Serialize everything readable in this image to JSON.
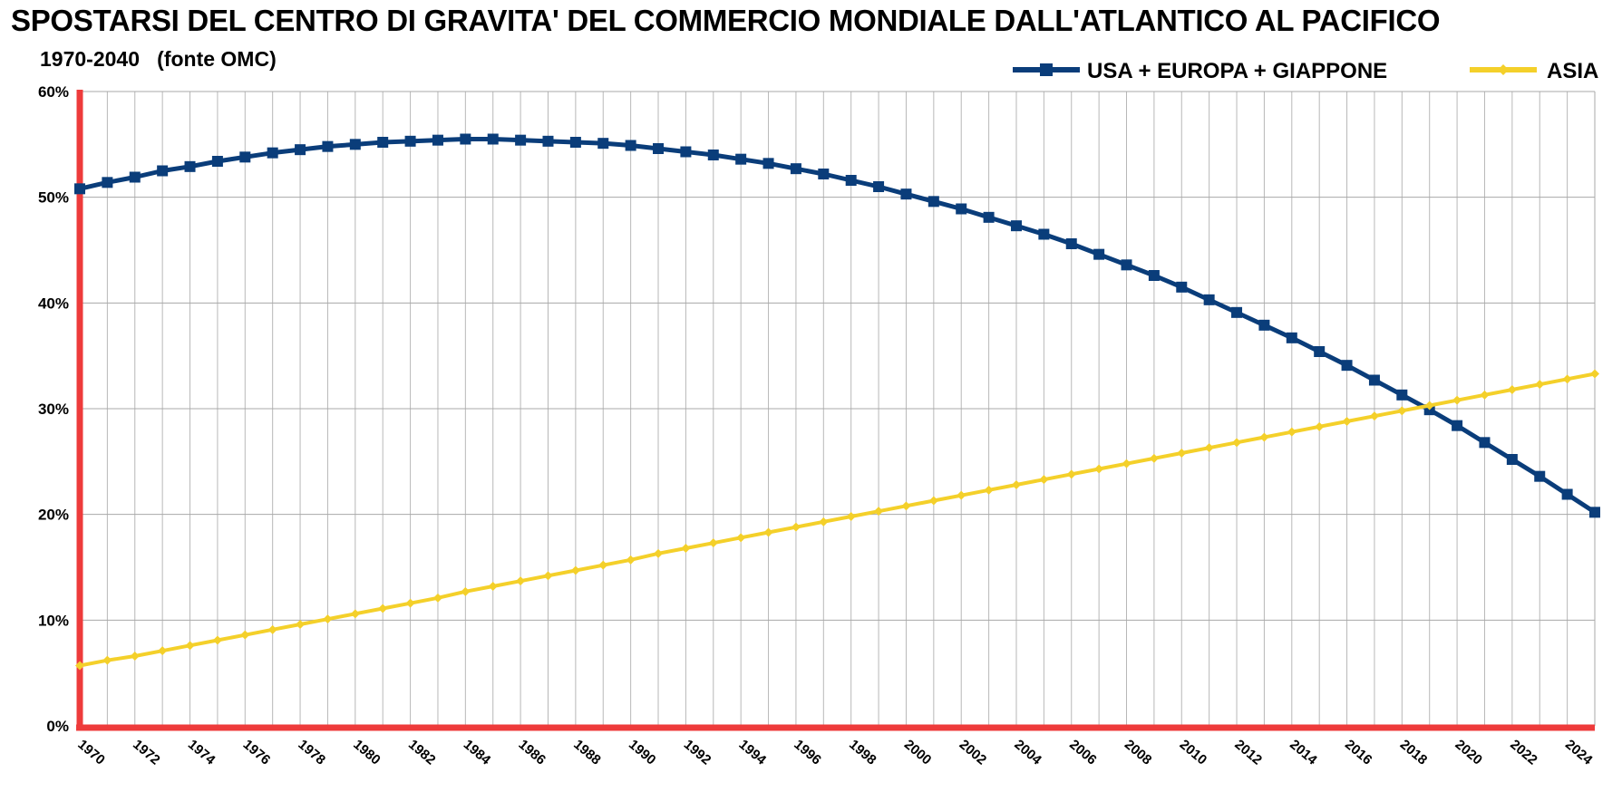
{
  "chart_data": {
    "type": "line",
    "title": "SPOSTARSI DEL CENTRO DI GRAVITA' DEL COMMERCIO MONDIALE DALL'ATLANTICO AL PACIFICO",
    "subtitle": "1970-2040   (fonte OMC)",
    "xlabel": "",
    "ylabel": "",
    "ylim": [
      0,
      60
    ],
    "y_ticks": [
      "0%",
      "10%",
      "20%",
      "30%",
      "40%",
      "50%",
      "60%"
    ],
    "x_tick_labels": [
      "1970",
      "1972",
      "1974",
      "1976",
      "1978",
      "1980",
      "1982",
      "1984",
      "1986",
      "1988",
      "1990",
      "1992",
      "1994",
      "1996",
      "1998",
      "2000",
      "2002",
      "2004",
      "2006",
      "2008",
      "2010",
      "2012",
      "2014",
      "2016",
      "2018",
      "2020",
      "2022",
      "2024"
    ],
    "grid": true,
    "legend_position": "top-right",
    "x": [
      1970,
      1971,
      1972,
      1973,
      1974,
      1975,
      1976,
      1977,
      1978,
      1979,
      1980,
      1981,
      1982,
      1983,
      1984,
      1985,
      1986,
      1987,
      1988,
      1989,
      1990,
      1991,
      1992,
      1993,
      1994,
      1995,
      1996,
      1997,
      1998,
      1999,
      2000,
      2001,
      2002,
      2003,
      2004,
      2005,
      2006,
      2007,
      2008,
      2009,
      2010,
      2011,
      2012,
      2013,
      2014,
      2015,
      2016,
      2017,
      2018,
      2019,
      2020,
      2021,
      2022,
      2023,
      2024,
      2025
    ],
    "series": [
      {
        "name": "USA + EUROPA + GIAPPONE",
        "color": "#0a3d7a",
        "marker": "square",
        "values": [
          50.8,
          51.4,
          51.9,
          52.5,
          52.9,
          53.4,
          53.8,
          54.2,
          54.5,
          54.8,
          55.0,
          55.2,
          55.3,
          55.4,
          55.5,
          55.5,
          55.4,
          55.3,
          55.2,
          55.1,
          54.9,
          54.6,
          54.3,
          54.0,
          53.6,
          53.2,
          52.7,
          52.2,
          51.6,
          51.0,
          50.3,
          49.6,
          48.9,
          48.1,
          47.3,
          46.5,
          45.6,
          44.6,
          43.6,
          42.6,
          41.5,
          40.3,
          39.1,
          37.9,
          36.7,
          35.4,
          34.1,
          32.7,
          31.3,
          29.9,
          28.4,
          26.8,
          25.2,
          23.6,
          21.9,
          20.2
        ]
      },
      {
        "name": "ASIA",
        "color": "#f4d02a",
        "marker": "diamond",
        "values": [
          5.7,
          6.2,
          6.6,
          7.1,
          7.6,
          8.1,
          8.6,
          9.1,
          9.6,
          10.1,
          10.6,
          11.1,
          11.6,
          12.1,
          12.7,
          13.2,
          13.7,
          14.2,
          14.7,
          15.2,
          15.7,
          16.3,
          16.8,
          17.3,
          17.8,
          18.3,
          18.8,
          19.3,
          19.8,
          20.3,
          20.8,
          21.3,
          21.8,
          22.3,
          22.8,
          23.3,
          23.8,
          24.3,
          24.8,
          25.3,
          25.8,
          26.3,
          26.8,
          27.3,
          27.8,
          28.3,
          28.8,
          29.3,
          29.8,
          30.3,
          30.8,
          31.3,
          31.8,
          32.3,
          32.8,
          33.3
        ]
      }
    ]
  }
}
